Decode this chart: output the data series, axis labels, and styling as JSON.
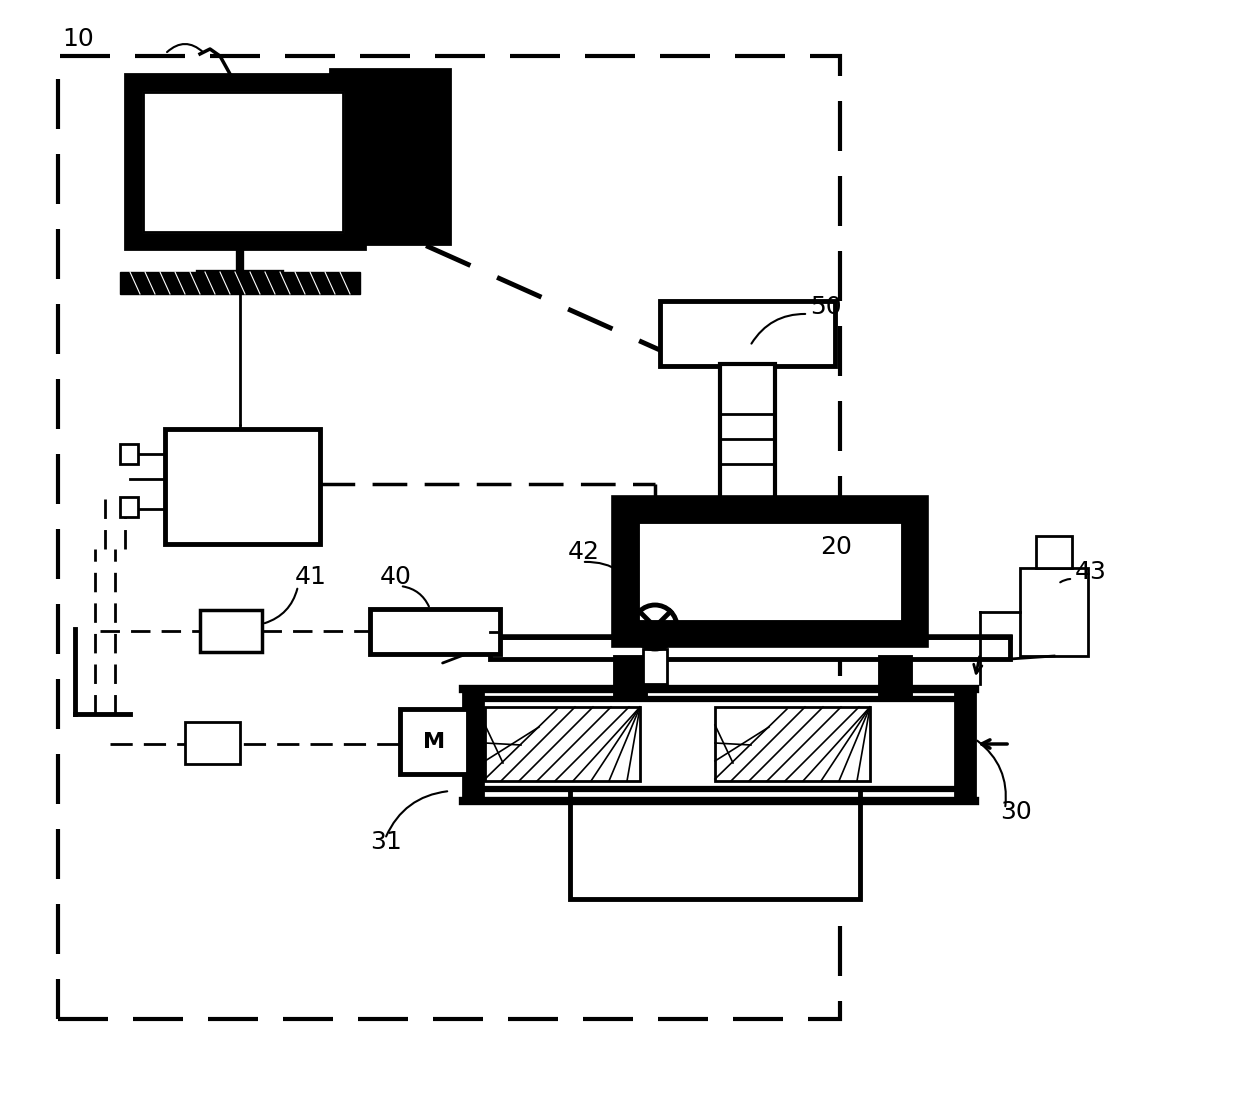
{
  "bg_color": "#ffffff",
  "lw_main": 2.0,
  "lw_thick": 3.5,
  "lw_border": 3.0,
  "label_fontsize": 18,
  "fig_w": 12.4,
  "fig_h": 11.14,
  "dpi": 100
}
